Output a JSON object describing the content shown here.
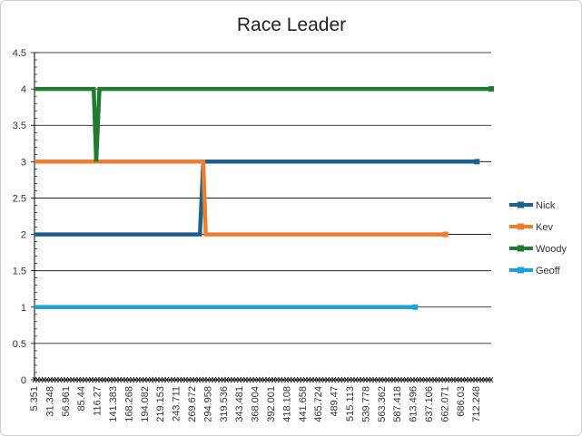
{
  "chart_data": {
    "type": "line",
    "title": "Race Leader",
    "xlabel": "",
    "ylabel": "",
    "ylim": [
      0,
      4.5
    ],
    "yticks": [
      "0",
      "0.5",
      "1",
      "1.5",
      "2",
      "2.5",
      "3",
      "3.5",
      "4",
      "4.5"
    ],
    "xlim": [
      5.351,
      735
    ],
    "xtick_labels": [
      "5.351",
      "31.348",
      "56.961",
      "85.44",
      "116.27",
      "141.383",
      "168.268",
      "194.082",
      "219.153",
      "243.711",
      "269.672",
      "294.958",
      "319.536",
      "343.481",
      "368.004",
      "392.001",
      "418.108",
      "441.658",
      "465.724",
      "489.47",
      "515.113",
      "539.778",
      "563.362",
      "587.418",
      "613.496",
      "637.106",
      "662.071",
      "686.03",
      "712.248"
    ],
    "grid": "horizontal",
    "legend": "right",
    "series": [
      {
        "name": "Nick",
        "color": "#1f5f8b",
        "x": [
          5.351,
          269.672,
          275.0,
          712.248
        ],
        "y": [
          2,
          2,
          3,
          3
        ]
      },
      {
        "name": "Kev",
        "color": "#ed7d31",
        "x": [
          5.351,
          275.0,
          279.0,
          662.071
        ],
        "y": [
          3,
          3,
          2,
          2
        ]
      },
      {
        "name": "Woody",
        "color": "#217a33",
        "x": [
          5.351,
          100.0,
          104.0,
          109.0,
          735.0
        ],
        "y": [
          4,
          4,
          3,
          4,
          4
        ]
      },
      {
        "name": "Geoff",
        "color": "#1ba1dc",
        "x": [
          5.351,
          613.496
        ],
        "y": [
          1,
          1
        ]
      }
    ]
  }
}
